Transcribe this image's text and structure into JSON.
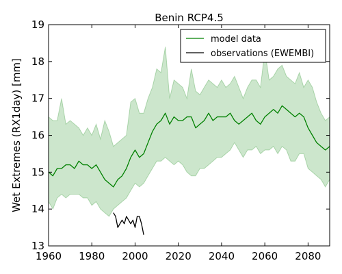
{
  "chart_data": {
    "type": "line",
    "title": "Benin  RCP4.5",
    "xlabel": "",
    "ylabel": "Wet Extremes (RX1day) [mm]",
    "xlim": [
      1960,
      2090
    ],
    "ylim": [
      13,
      19
    ],
    "xticks": [
      1960,
      1980,
      2000,
      2020,
      2040,
      2060,
      2080
    ],
    "yticks": [
      13,
      14,
      15,
      16,
      17,
      18,
      19
    ],
    "grid": false,
    "legend_position": "top-right",
    "series": [
      {
        "name": "model data",
        "color": "#008000",
        "style": "line",
        "x": [
          1960,
          1962,
          1964,
          1966,
          1968,
          1970,
          1972,
          1974,
          1976,
          1978,
          1980,
          1982,
          1984,
          1986,
          1988,
          1990,
          1992,
          1994,
          1996,
          1998,
          2000,
          2002,
          2004,
          2006,
          2008,
          2010,
          2012,
          2014,
          2016,
          2018,
          2020,
          2022,
          2024,
          2026,
          2028,
          2030,
          2032,
          2034,
          2036,
          2038,
          2040,
          2042,
          2044,
          2046,
          2048,
          2050,
          2052,
          2054,
          2056,
          2058,
          2060,
          2062,
          2064,
          2066,
          2068,
          2070,
          2072,
          2074,
          2076,
          2078,
          2080,
          2082,
          2084,
          2086,
          2088,
          2090
        ],
        "y": [
          15.0,
          14.9,
          15.1,
          15.1,
          15.2,
          15.2,
          15.1,
          15.3,
          15.2,
          15.2,
          15.1,
          15.2,
          15.0,
          14.8,
          14.7,
          14.6,
          14.8,
          14.9,
          15.1,
          15.4,
          15.6,
          15.4,
          15.5,
          15.8,
          16.1,
          16.3,
          16.4,
          16.6,
          16.3,
          16.5,
          16.4,
          16.4,
          16.5,
          16.5,
          16.2,
          16.3,
          16.4,
          16.6,
          16.4,
          16.5,
          16.5,
          16.5,
          16.6,
          16.4,
          16.3,
          16.4,
          16.5,
          16.6,
          16.4,
          16.3,
          16.5,
          16.6,
          16.7,
          16.6,
          16.8,
          16.7,
          16.6,
          16.5,
          16.6,
          16.5,
          16.2,
          16.0,
          15.8,
          15.7,
          15.6,
          15.7
        ]
      },
      {
        "name": "observations (EWEMBI)",
        "color": "#000000",
        "style": "line",
        "x": [
          1990,
          1991,
          1992,
          1993,
          1994,
          1995,
          1996,
          1997,
          1998,
          1999,
          2000,
          2001,
          2002,
          2003,
          2004
        ],
        "y": [
          13.9,
          13.8,
          13.5,
          13.6,
          13.7,
          13.6,
          13.8,
          13.7,
          13.6,
          13.7,
          13.5,
          13.8,
          13.8,
          13.6,
          13.3
        ]
      }
    ],
    "range_band": {
      "color": "#008000",
      "opacity": 0.2,
      "x": [
        1960,
        1962,
        1964,
        1966,
        1968,
        1970,
        1972,
        1974,
        1976,
        1978,
        1980,
        1982,
        1984,
        1986,
        1988,
        1990,
        1992,
        1994,
        1996,
        1998,
        2000,
        2002,
        2004,
        2006,
        2008,
        2010,
        2012,
        2014,
        2016,
        2018,
        2020,
        2022,
        2024,
        2026,
        2028,
        2030,
        2032,
        2034,
        2036,
        2038,
        2040,
        2042,
        2044,
        2046,
        2048,
        2050,
        2052,
        2054,
        2056,
        2058,
        2060,
        2062,
        2064,
        2066,
        2068,
        2070,
        2072,
        2074,
        2076,
        2078,
        2080,
        2082,
        2084,
        2086,
        2088,
        2090
      ],
      "lower": [
        14.2,
        14.0,
        14.3,
        14.4,
        14.3,
        14.4,
        14.4,
        14.4,
        14.3,
        14.3,
        14.1,
        14.2,
        14.0,
        13.9,
        13.8,
        14.0,
        14.1,
        14.2,
        14.3,
        14.5,
        14.7,
        14.6,
        14.7,
        14.9,
        15.1,
        15.3,
        15.3,
        15.4,
        15.3,
        15.2,
        15.3,
        15.2,
        15.0,
        14.9,
        14.9,
        15.1,
        15.1,
        15.2,
        15.3,
        15.4,
        15.4,
        15.5,
        15.6,
        15.8,
        15.6,
        15.4,
        15.6,
        15.6,
        15.7,
        15.5,
        15.6,
        15.6,
        15.7,
        15.5,
        15.7,
        15.6,
        15.3,
        15.3,
        15.5,
        15.5,
        15.1,
        15.0,
        14.9,
        14.8,
        14.6,
        14.8
      ],
      "upper": [
        16.5,
        16.4,
        16.4,
        17.0,
        16.3,
        16.4,
        16.3,
        16.2,
        16.0,
        16.2,
        16.0,
        16.3,
        15.9,
        16.4,
        16.1,
        15.7,
        15.8,
        15.9,
        16.0,
        16.9,
        17.0,
        16.6,
        16.6,
        17.0,
        17.3,
        17.8,
        17.7,
        18.4,
        17.0,
        17.5,
        17.4,
        17.3,
        17.0,
        17.8,
        17.2,
        17.1,
        17.3,
        17.5,
        17.4,
        17.3,
        17.5,
        17.3,
        17.4,
        17.6,
        17.3,
        17.0,
        17.3,
        17.5,
        17.5,
        17.3,
        18.3,
        17.5,
        17.6,
        17.8,
        17.9,
        17.6,
        17.5,
        17.4,
        17.7,
        17.3,
        17.5,
        17.3,
        16.9,
        16.6,
        16.4,
        16.5
      ]
    }
  }
}
